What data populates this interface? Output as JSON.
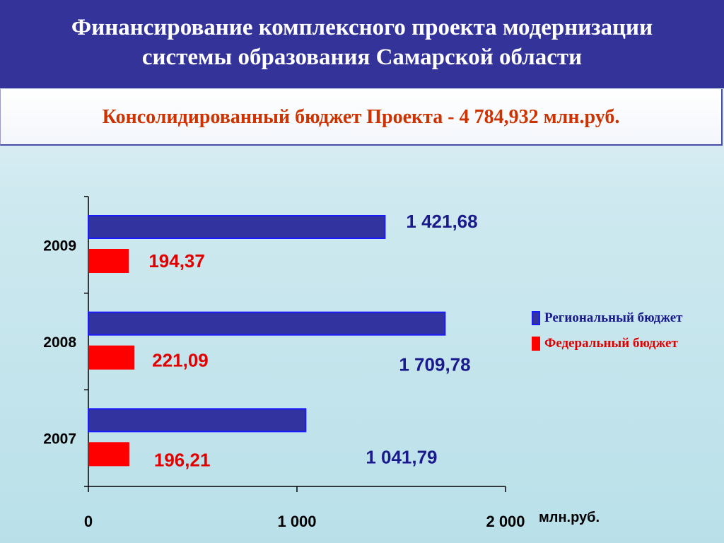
{
  "header": {
    "title_line1": "Финансирование комплексного проекта модернизации",
    "title_line2": "системы образования Самарской области"
  },
  "subtitle": "Консолидированный бюджет Проекта - 4 784,932 млн.руб.",
  "colors": {
    "regional": "#3333a0",
    "regional_border": "#1a1aff",
    "federal": "#ff0000",
    "federal_label": "#e00000",
    "regional_label": "#1a1a8c"
  },
  "chart_data": {
    "type": "bar",
    "orientation": "horizontal",
    "categories": [
      "2009",
      "2008",
      "2007"
    ],
    "series": [
      {
        "name": "Региональный бюджет",
        "values": [
          1421.68,
          1709.78,
          1041.79
        ],
        "labels": [
          "1 421,68",
          "1 709,78",
          "1 041,79"
        ]
      },
      {
        "name": "Федеральный бюджет",
        "values": [
          194.37,
          221.09,
          196.21
        ],
        "labels": [
          "194,37",
          "221,09",
          "196,21"
        ]
      }
    ],
    "xlim": [
      0,
      2000
    ],
    "x_ticks": [
      0,
      1000,
      2000
    ],
    "x_tick_labels": [
      "0",
      "1 000",
      "2 000"
    ],
    "xlabel": "млн.руб.",
    "legend_position": "right",
    "grid": false
  }
}
